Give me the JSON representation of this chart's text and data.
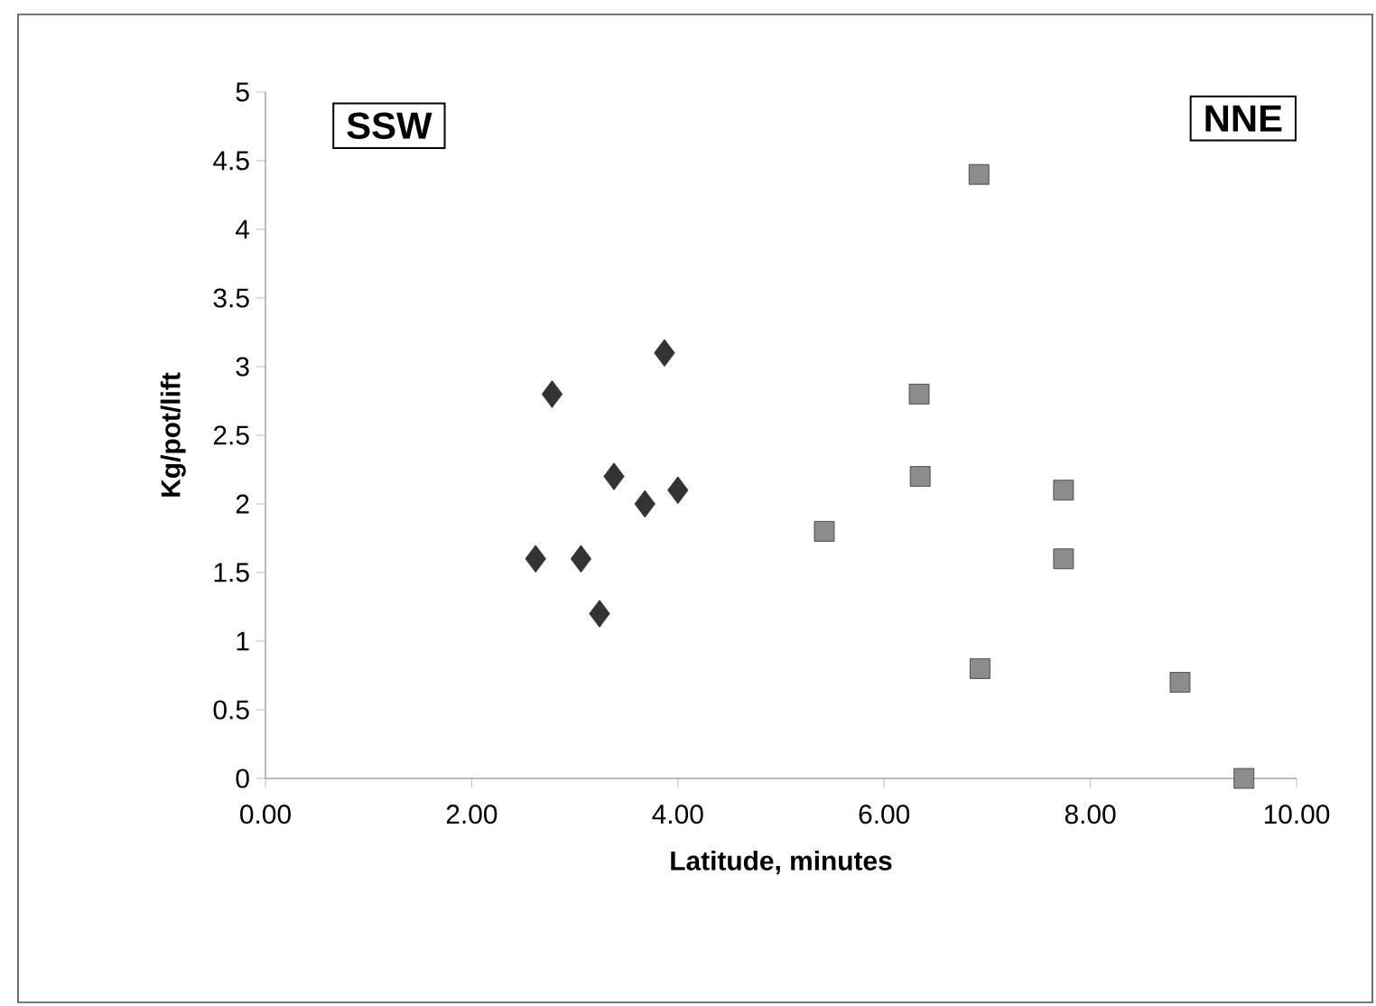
{
  "chart_data": {
    "type": "scatter",
    "xlabel": "Latitude, minutes",
    "ylabel": "Kg/pot/lift",
    "annotations": [
      "SSW",
      "NNE"
    ],
    "series": [
      {
        "color": "#333333",
        "marker": "diamond",
        "x": [
          2.62,
          2.78,
          3.06,
          3.24,
          3.38,
          3.68,
          3.87,
          4.0
        ],
        "values": [
          1.6,
          2.8,
          1.6,
          1.2,
          2.2,
          2.0,
          3.1,
          2.1
        ]
      },
      {
        "color": "#8c8c8c",
        "marker": "square",
        "x": [
          5.42,
          6.34,
          6.35,
          6.92,
          6.93,
          7.74,
          7.74,
          8.87,
          9.49
        ],
        "values": [
          1.8,
          2.8,
          2.2,
          4.4,
          0.8,
          2.1,
          1.6,
          0.7,
          0.0
        ]
      }
    ],
    "xlim": [
      0,
      10
    ],
    "ylim": [
      0,
      5
    ],
    "xticks": [
      {
        "value": 0,
        "label": "0.00"
      },
      {
        "value": 2,
        "label": "2.00"
      },
      {
        "value": 4,
        "label": "4.00"
      },
      {
        "value": 6,
        "label": "6.00"
      },
      {
        "value": 8,
        "label": "8.00"
      },
      {
        "value": 10,
        "label": "10.00"
      }
    ],
    "yticks": [
      0,
      0.5,
      1,
      1.5,
      2,
      2.5,
      3,
      3.5,
      4,
      4.5,
      5
    ],
    "grid": false
  }
}
